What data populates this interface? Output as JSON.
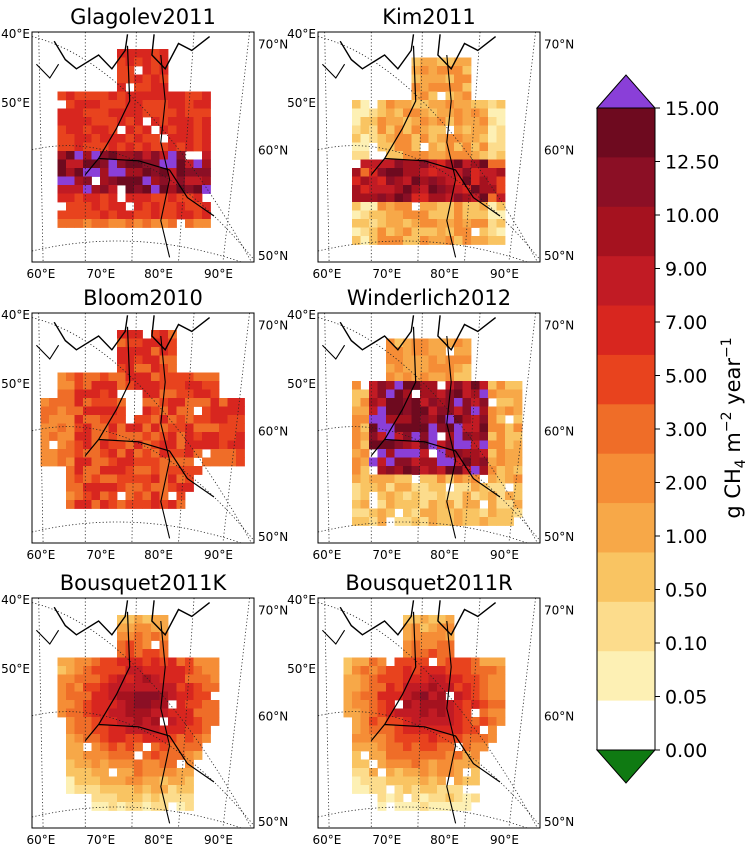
{
  "chart_data": {
    "type": "heatmap",
    "panels": [
      {
        "title": "Glagolev2011"
      },
      {
        "title": "Kim2011"
      },
      {
        "title": "Bloom2010"
      },
      {
        "title": "Winderlich2012"
      },
      {
        "title": "Bousquet2011K"
      },
      {
        "title": "Bousquet2011R"
      }
    ],
    "map_labels": {
      "lon_bottom": [
        "60°E",
        "70°E",
        "80°E",
        "90°E"
      ],
      "lon_left": [
        "40°E",
        "50°E"
      ],
      "lat_right": [
        "70°N",
        "60°N",
        "50°N"
      ]
    },
    "colorbar": {
      "label_prefix": "g CH",
      "label_sub": "4",
      "label_mid": " m",
      "label_sup1": "−2",
      "label_mid2": " year",
      "label_sup2": "−1",
      "ticks": [
        "15.00",
        "12.50",
        "10.00",
        "9.00",
        "7.00",
        "5.00",
        "3.00",
        "2.00",
        "1.00",
        "0.50",
        "0.10",
        "0.05",
        "0.00"
      ],
      "band_colors": [
        "#6e0a1f",
        "#8b0f25",
        "#a5121f",
        "#c11b24",
        "#d8261f",
        "#e8431e",
        "#ef6d28",
        "#f58d36",
        "#f7a848",
        "#f9c462",
        "#fcdc8c",
        "#fdf0b4",
        "#ffffff"
      ],
      "over_color": "#8a3fd8",
      "under_color": "#0f7a12"
    }
  }
}
